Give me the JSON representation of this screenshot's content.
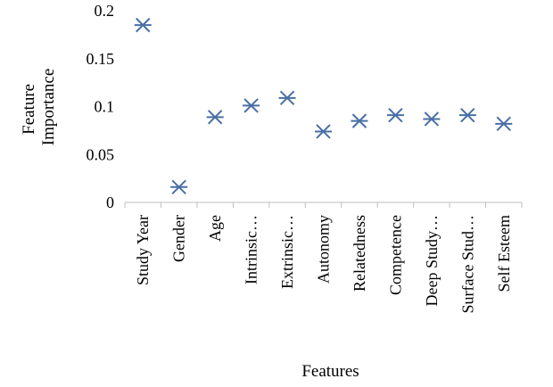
{
  "chart_data": {
    "type": "scatter",
    "title": "",
    "xlabel": "Features",
    "ylabel": "Feature Importance",
    "ylabel_lines": [
      "Feature",
      "Importance"
    ],
    "ylim": [
      0,
      0.2
    ],
    "yticks": [
      0,
      0.05,
      0.1,
      0.15,
      0.2
    ],
    "ytick_labels": [
      "0",
      "0.05",
      "0.1",
      "0.15",
      "0.2"
    ],
    "categories": [
      "Study Year",
      "Gender",
      "Age",
      "Intrinsic…",
      "Extrinsic…",
      "Autonomy",
      "Relatedness",
      "Competence",
      "Deep Study…",
      "Surface Stud…",
      "Self Esteem"
    ],
    "values": [
      0.185,
      0.016,
      0.089,
      0.101,
      0.109,
      0.074,
      0.085,
      0.091,
      0.087,
      0.091,
      0.082
    ],
    "marker": "asterisk-x",
    "grid": false,
    "legend": "none",
    "colors": {
      "marker": "#4a6fa5",
      "axis": "#bfbfbf",
      "text": "#000000"
    }
  }
}
